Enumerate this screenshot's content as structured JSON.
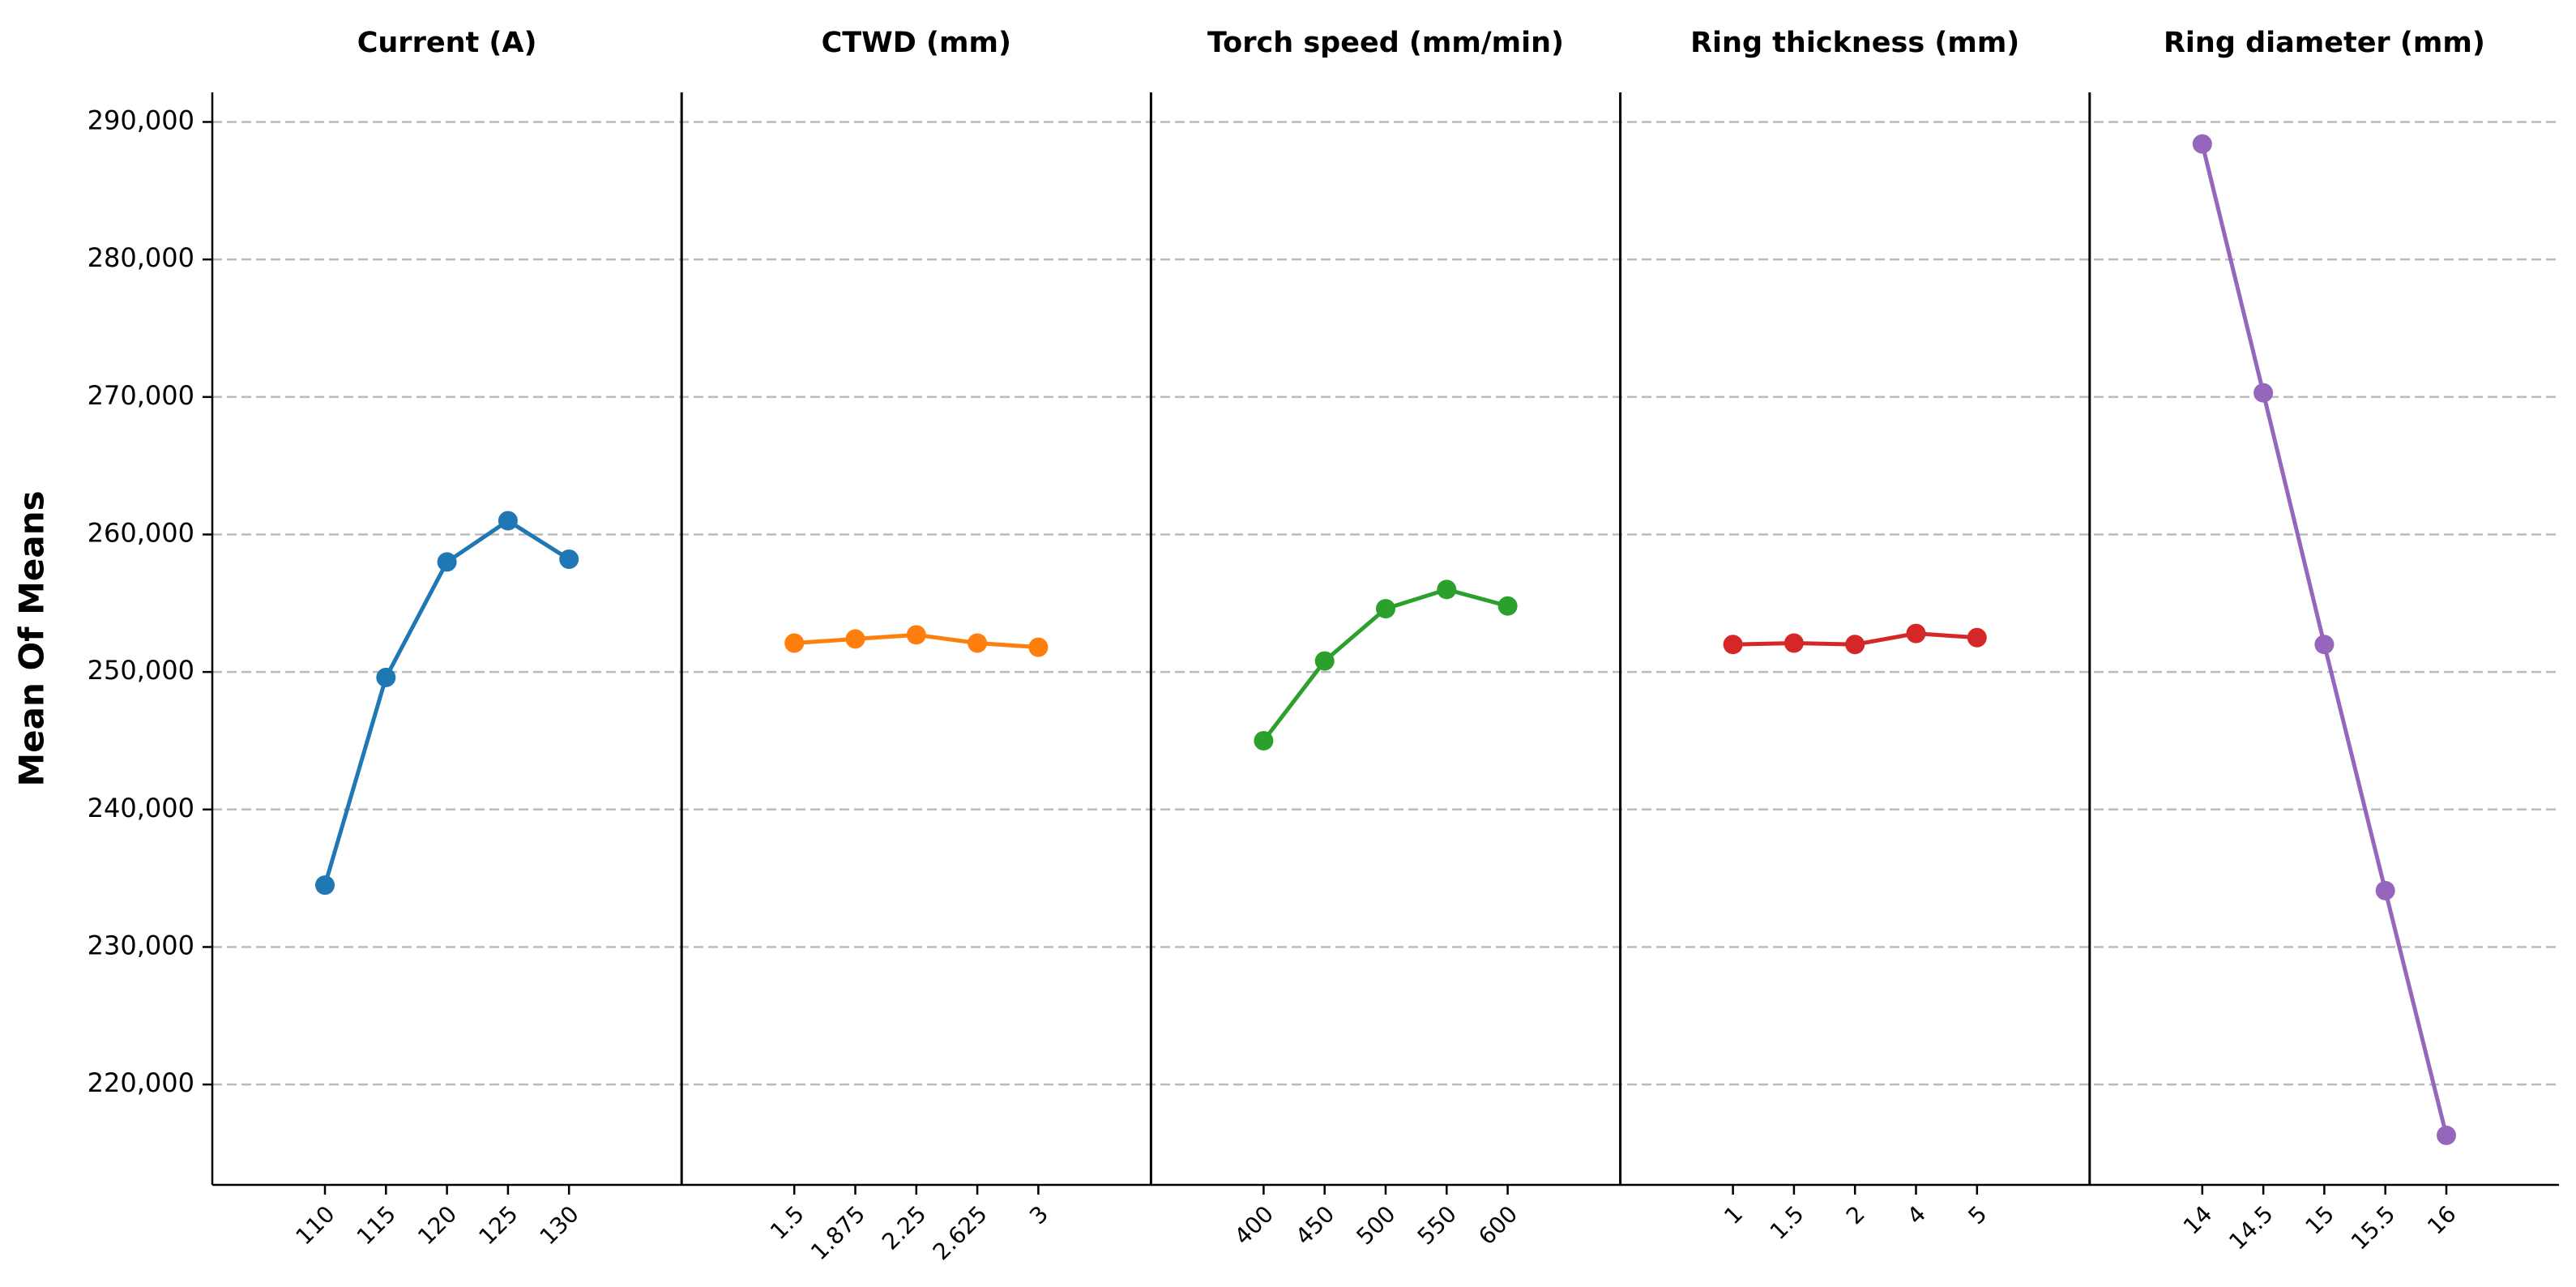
{
  "chart_data": {
    "type": "line",
    "ylabel": "Mean Of Means",
    "ylim": [
      212700,
      292150
    ],
    "yticks": [
      {
        "value": 220000,
        "label": "220,000"
      },
      {
        "value": 230000,
        "label": "230,000"
      },
      {
        "value": 240000,
        "label": "240,000"
      },
      {
        "value": 250000,
        "label": "250,000"
      },
      {
        "value": 260000,
        "label": "260,000"
      },
      {
        "value": 270000,
        "label": "270,000"
      },
      {
        "value": 280000,
        "label": "280,000"
      },
      {
        "value": 290000,
        "label": "290,000"
      }
    ],
    "grid": true,
    "panels": [
      {
        "title": "Current (A)",
        "color": "#1f77b4",
        "categories": [
          "110",
          "115",
          "120",
          "125",
          "130"
        ],
        "values": [
          234500,
          249600,
          258000,
          261000,
          258200
        ]
      },
      {
        "title": "CTWD (mm)",
        "color": "#ff7f0e",
        "categories": [
          "1.5",
          "1.875",
          "2.25",
          "2.625",
          "3"
        ],
        "values": [
          252100,
          252400,
          252700,
          252100,
          251800
        ]
      },
      {
        "title": "Torch speed (mm/min)",
        "color": "#2ca02c",
        "categories": [
          "400",
          "450",
          "500",
          "550",
          "600"
        ],
        "values": [
          245000,
          250800,
          254600,
          256000,
          254800
        ]
      },
      {
        "title": "Ring thickness (mm)",
        "color": "#d62728",
        "categories": [
          "1",
          "1.5",
          "2",
          "4",
          "5"
        ],
        "values": [
          252000,
          252100,
          252000,
          252800,
          252500
        ]
      },
      {
        "title": "Ring diameter (mm)",
        "color": "#9467bd",
        "categories": [
          "14",
          "14.5",
          "15",
          "15.5",
          "16"
        ],
        "values": [
          288400,
          270300,
          252000,
          234100,
          216300
        ]
      }
    ]
  }
}
